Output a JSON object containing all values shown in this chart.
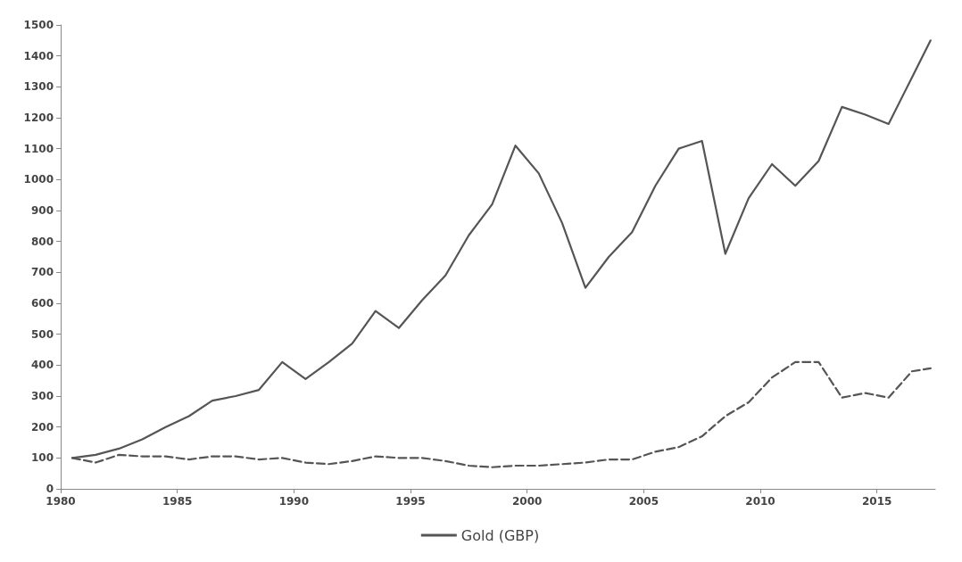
{
  "chart_data": {
    "type": "line",
    "xlim": [
      1980,
      2017.5
    ],
    "xticks": [
      1980,
      1985,
      1990,
      1995,
      2000,
      2005,
      2010,
      2015
    ],
    "ylim": [
      0,
      1500
    ],
    "yticks": [
      0,
      100,
      200,
      300,
      400,
      500,
      600,
      700,
      800,
      900,
      1000,
      1100,
      1200,
      1300,
      1400,
      1500
    ],
    "grid": false,
    "legend": "bottom",
    "marker": "none",
    "x": [
      1980.5,
      1981.5,
      1982.5,
      1983.5,
      1984.5,
      1985.5,
      1986.5,
      1987.5,
      1988.5,
      1989.5,
      1990.5,
      1991.5,
      1992.5,
      1993.5,
      1994.5,
      1995.5,
      1996.5,
      1997.5,
      1998.5,
      1999.5,
      2000.5,
      2001.5,
      2002.5,
      2003.5,
      2004.5,
      2005.5,
      2006.5,
      2007.5,
      2008.5,
      2009.5,
      2010.5,
      2011.5,
      2012.5,
      2013.5,
      2014.5,
      2015.5,
      2016.5,
      2017.3
    ],
    "series": [
      {
        "color": "#555555",
        "line_style": "solid",
        "values": [
          100,
          110,
          130,
          160,
          200,
          235,
          285,
          300,
          320,
          410,
          355,
          410,
          470,
          575,
          520,
          610,
          690,
          820,
          920,
          1110,
          1020,
          860,
          650,
          750,
          830,
          980,
          1100,
          1125,
          760,
          940,
          1050,
          980,
          1060,
          1235,
          1210,
          1180,
          1330,
          1450
        ]
      },
      {
        "name": "Gold (GBP)",
        "color": "#555555",
        "line_style": "dashed",
        "values": [
          100,
          85,
          110,
          105,
          105,
          95,
          105,
          105,
          95,
          100,
          85,
          80,
          90,
          105,
          100,
          100,
          90,
          75,
          70,
          75,
          75,
          80,
          85,
          95,
          95,
          120,
          135,
          170,
          235,
          280,
          360,
          410,
          410,
          295,
          310,
          295,
          380,
          390
        ]
      }
    ]
  }
}
